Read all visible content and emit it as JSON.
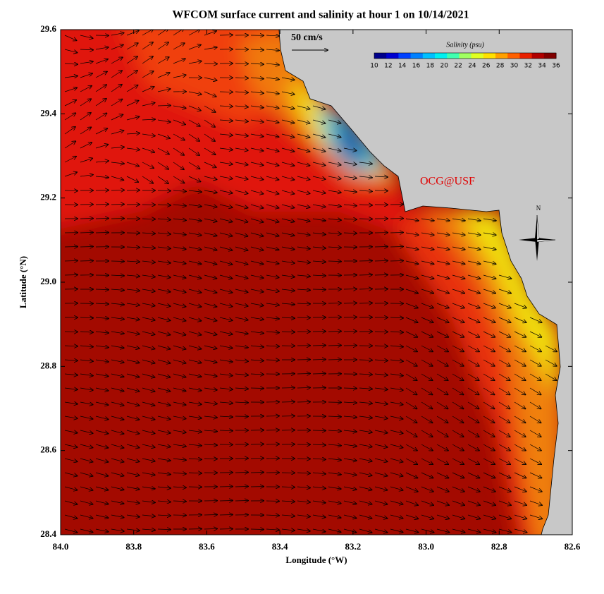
{
  "title": "WFCOM surface current and salinity at hour 1 on 10/14/2021",
  "x_axis": {
    "label": "Longitude (°W)",
    "ticks": [
      "84.0",
      "83.8",
      "83.6",
      "83.4",
      "83.2",
      "83.0",
      "82.8",
      "82.6"
    ]
  },
  "y_axis": {
    "label": "Latitude (°N)",
    "ticks": [
      "29.6",
      "29.4",
      "29.2",
      "29.0",
      "28.8",
      "28.6",
      "28.4"
    ]
  },
  "scale_label": "50 cm/s",
  "colorbar": {
    "title": "Salinity (psu)",
    "ticks": [
      "10",
      "12",
      "14",
      "16",
      "18",
      "20",
      "22",
      "24",
      "26",
      "28",
      "30",
      "32",
      "34",
      "36"
    ]
  },
  "watermark": "OCG@USF",
  "compass": "N"
}
